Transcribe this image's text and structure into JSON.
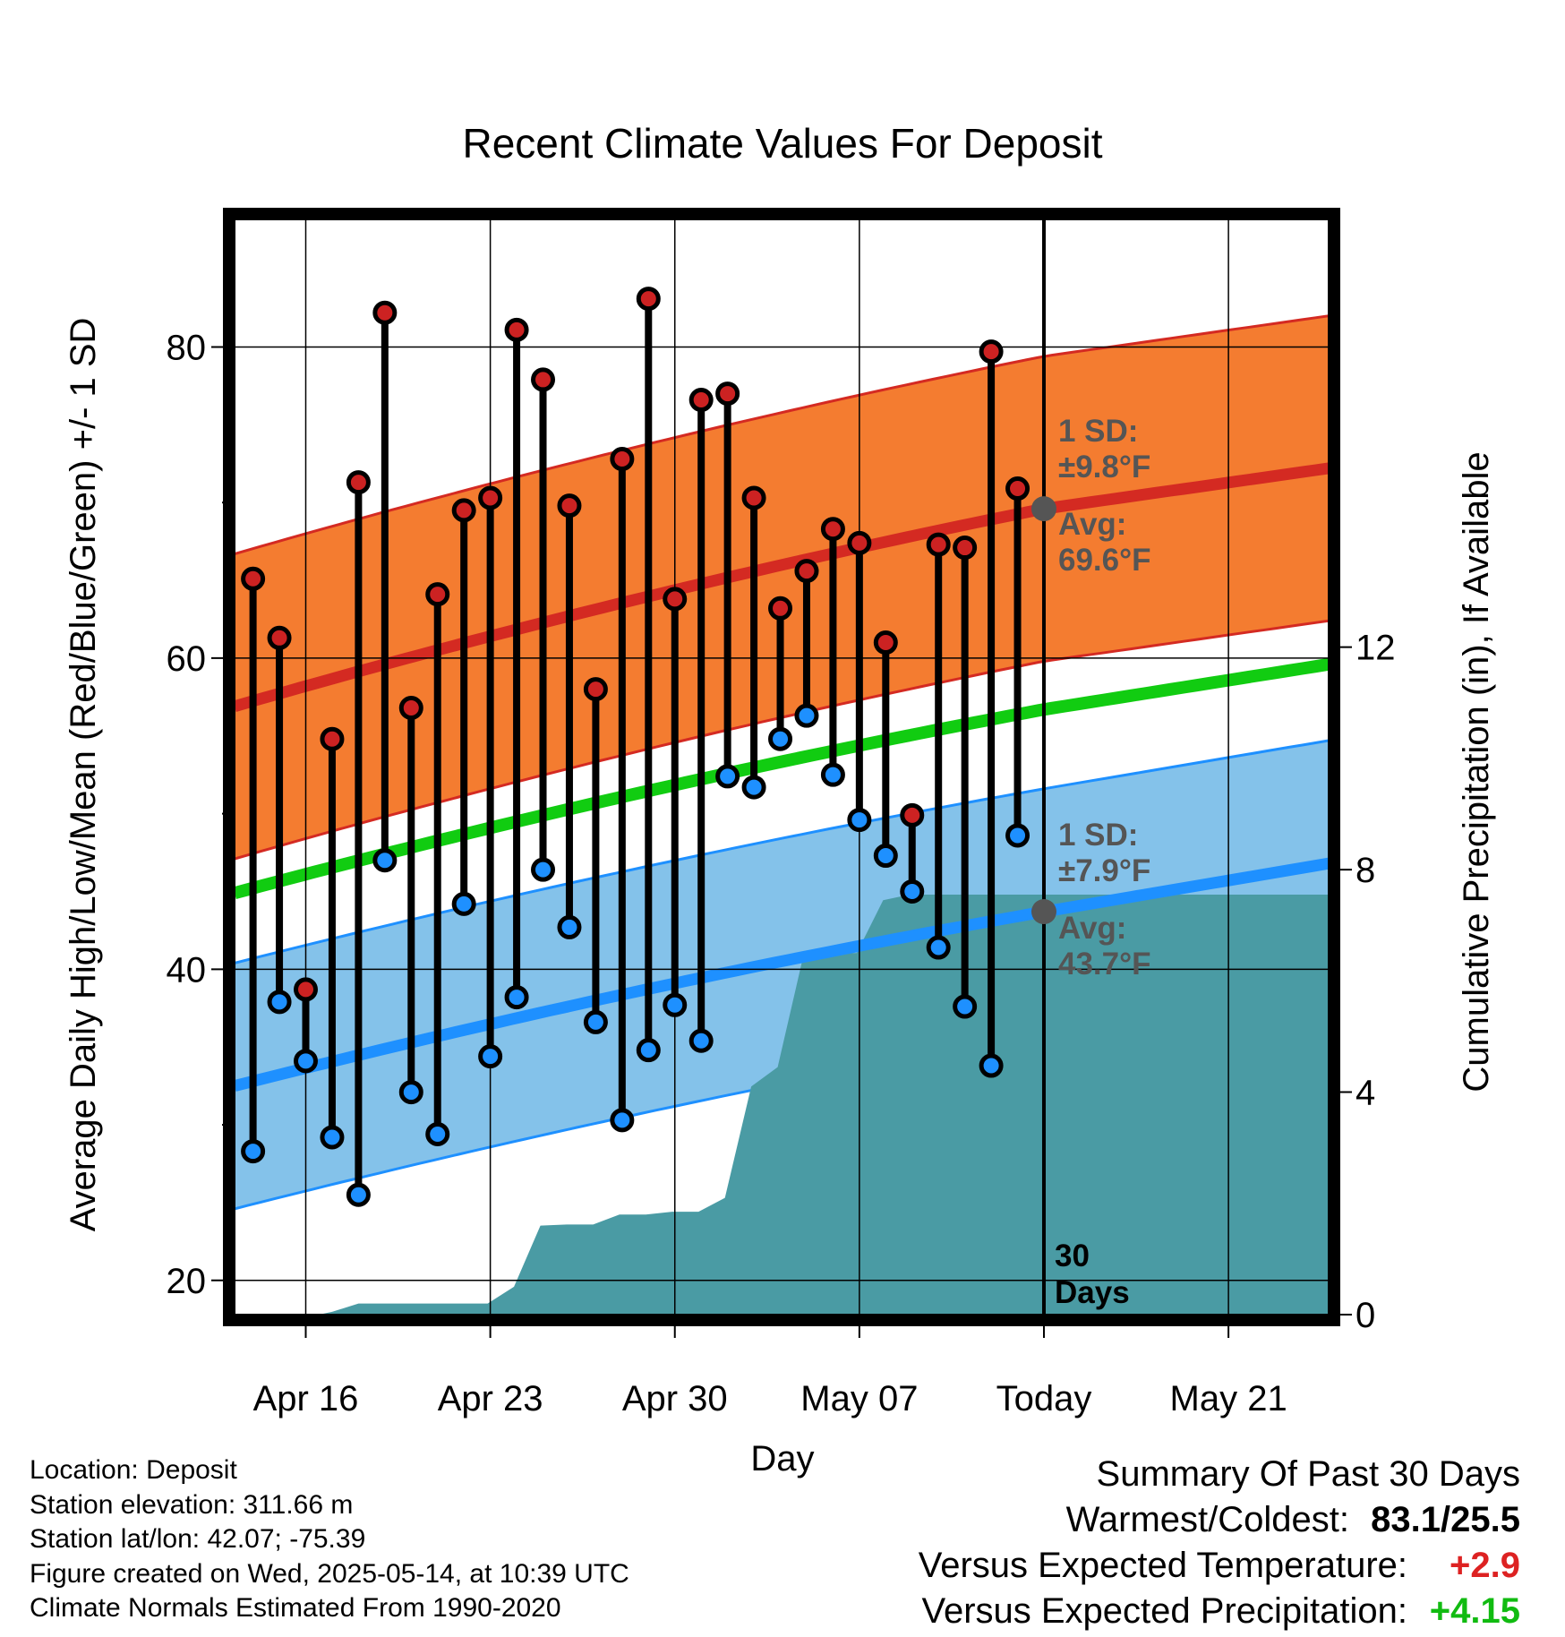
{
  "chart_data": {
    "type": "line",
    "title": "Recent Climate Values For Deposit",
    "xlabel": "Day",
    "ylabel": "Average Daily High/Low/Mean (Red/Blue/Green) +/- 1 SD",
    "y2label": "Cumulative Precipitation (in), If Available",
    "ylim": [
      17.8,
      88.2
    ],
    "y2lim": [
      0,
      19.69
    ],
    "y_ticks": [
      "20",
      "40",
      "60",
      "80"
    ],
    "y2_ticks": [
      "0",
      "4",
      "8",
      "12"
    ],
    "x_tick_labels": [
      "Apr 16",
      "Apr 23",
      "Apr 30",
      "May 07",
      "Today",
      "May 21"
    ],
    "x_range_days_from_apr14": [
      -0.7,
      40.8
    ],
    "grid": true,
    "today_marker": {
      "label_line1": "30",
      "label_line2": "Days"
    },
    "dates": [
      "Apr 14",
      "Apr 15",
      "Apr 16",
      "Apr 17",
      "Apr 18",
      "Apr 19",
      "Apr 20",
      "Apr 21",
      "Apr 22",
      "Apr 23",
      "Apr 24",
      "Apr 25",
      "Apr 26",
      "Apr 27",
      "Apr 28",
      "Apr 29",
      "Apr 30",
      "May 01",
      "May 02",
      "May 03",
      "May 04",
      "May 05",
      "May 06",
      "May 07",
      "May 08",
      "May 09",
      "May 10",
      "May 11",
      "May 12",
      "May 13"
    ],
    "series": [
      {
        "name": "High",
        "color": "#cc2222",
        "values": [
          65.1,
          61.3,
          38.7,
          54.8,
          71.3,
          82.2,
          56.8,
          64.1,
          69.5,
          70.3,
          81.1,
          77.9,
          69.8,
          58.0,
          72.8,
          83.1,
          63.8,
          76.6,
          77.0,
          70.3,
          63.2,
          65.6,
          68.3,
          67.4,
          61.0,
          49.9,
          67.3,
          67.1,
          79.7,
          70.9
        ]
      },
      {
        "name": "Low",
        "color": "#1e90ff",
        "values": [
          28.3,
          37.9,
          34.1,
          29.2,
          25.5,
          47.0,
          32.1,
          29.4,
          44.2,
          34.4,
          38.2,
          46.4,
          42.7,
          36.6,
          30.3,
          34.8,
          37.7,
          35.4,
          52.4,
          51.7,
          54.8,
          56.3,
          52.5,
          49.6,
          47.3,
          45.0,
          41.4,
          37.6,
          33.8,
          48.6
        ]
      }
    ],
    "normals": {
      "high_mean": {
        "start": 56.9,
        "today": 69.6,
        "end": 72.2,
        "color": "#d42a22"
      },
      "high_sd": 9.8,
      "low_mean": {
        "start": 32.5,
        "today": 43.7,
        "end": 46.8,
        "color": "#1e90ff"
      },
      "low_sd": 7.9,
      "mean": {
        "start": 44.9,
        "today": 56.7,
        "end": 59.6,
        "color": "#11cc11"
      },
      "high_band_color": "#f47c30",
      "low_band_color": "#84c2ea"
    },
    "precipitation": {
      "color": "#4a9ba4",
      "cumulative": [
        0,
        0,
        0,
        0,
        0,
        0.05,
        0.2,
        0.2,
        0.2,
        0.2,
        0.2,
        0.2,
        0.5,
        1.6,
        1.62,
        1.62,
        1.8,
        1.8,
        1.85,
        1.85,
        2.1,
        4.1,
        4.45,
        6.5,
        6.5,
        6.5,
        7.45,
        7.55,
        7.55,
        7.55,
        7.55,
        7.55
      ],
      "cumulative_day_offsets": [
        -0.7,
        0,
        1,
        2,
        2.5,
        3,
        4,
        5,
        6,
        7,
        8,
        8.9,
        9.9,
        10.9,
        11.9,
        12.9,
        13.9,
        14.9,
        15.9,
        16.9,
        17.9,
        18.9,
        19.9,
        20.9,
        21.9,
        22.9,
        23.9,
        24.9,
        25.9,
        26.9,
        30,
        40.8
      ]
    },
    "annotations": {
      "high": {
        "sd_label": "1 SD:",
        "sd_value": "±9.8°F",
        "avg_label": "Avg:",
        "avg_value": "69.6°F"
      },
      "low": {
        "sd_label": "1 SD:",
        "sd_value": "±7.9°F",
        "avg_label": "Avg:",
        "avg_value": "43.7°F"
      }
    }
  },
  "station": {
    "location": "Location: Deposit",
    "elevation": "Station elevation: 311.66 m",
    "latlon": "Station lat/lon: 42.07; -75.39",
    "created": "Figure created on Wed, 2025-05-14, at 10:39 UTC",
    "normals": "Climate Normals Estimated From 1990-2020"
  },
  "summary": {
    "title": "Summary Of Past 30 Days",
    "warmest_coldest_label": "Warmest/Coldest:",
    "warmest_coldest_value": "83.1/25.5",
    "temp_label": "Versus Expected Temperature:",
    "temp_value": "+2.9",
    "temp_color": "#dd2222",
    "precip_label": "Versus Expected Precipitation:",
    "precip_value": "+4.15",
    "precip_color": "#11bb11"
  }
}
